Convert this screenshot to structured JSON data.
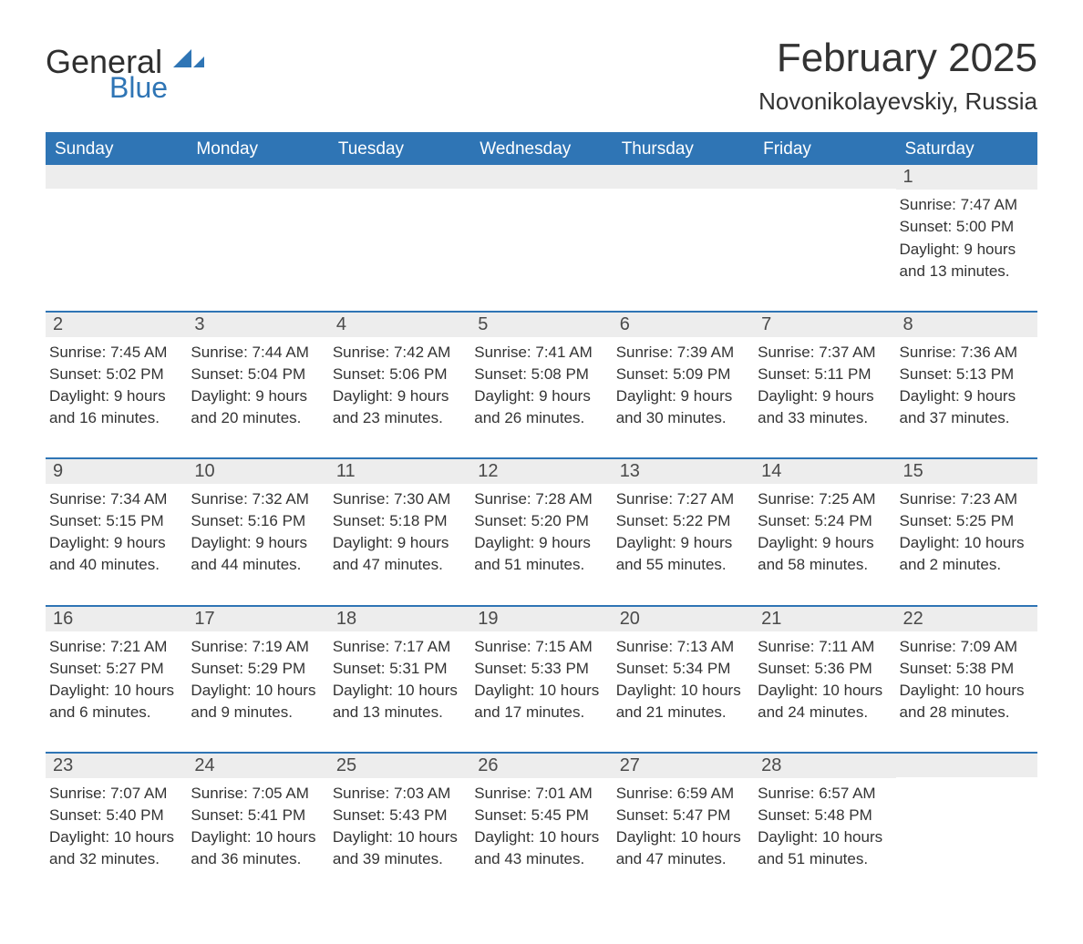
{
  "brand": {
    "text_general": "General",
    "text_blue": "Blue",
    "mark_color": "#2f75b5",
    "text_dark_color": "#2f2f2f"
  },
  "title": {
    "month_year": "February 2025",
    "location": "Novonikolayevskiy, Russia"
  },
  "colors": {
    "header_bg": "#2f75b5",
    "header_text": "#ffffff",
    "row_divider": "#2f75b5",
    "daynum_bg": "#ededed",
    "body_text": "#333333",
    "page_bg": "#ffffff"
  },
  "typography": {
    "month_title_fontsize": 44,
    "location_fontsize": 26,
    "weekday_fontsize": 19,
    "daynum_fontsize": 20,
    "body_fontsize": 17,
    "logo_general_fontsize": 36,
    "logo_blue_fontsize": 32
  },
  "weekdays": [
    "Sunday",
    "Monday",
    "Tuesday",
    "Wednesday",
    "Thursday",
    "Friday",
    "Saturday"
  ],
  "weeks": [
    [
      null,
      null,
      null,
      null,
      null,
      null,
      {
        "day": "1",
        "sunrise": "7:47 AM",
        "sunset": "5:00 PM",
        "daylight1": "Daylight: 9 hours",
        "daylight2": "and 13 minutes."
      }
    ],
    [
      {
        "day": "2",
        "sunrise": "7:45 AM",
        "sunset": "5:02 PM",
        "daylight1": "Daylight: 9 hours",
        "daylight2": "and 16 minutes."
      },
      {
        "day": "3",
        "sunrise": "7:44 AM",
        "sunset": "5:04 PM",
        "daylight1": "Daylight: 9 hours",
        "daylight2": "and 20 minutes."
      },
      {
        "day": "4",
        "sunrise": "7:42 AM",
        "sunset": "5:06 PM",
        "daylight1": "Daylight: 9 hours",
        "daylight2": "and 23 minutes."
      },
      {
        "day": "5",
        "sunrise": "7:41 AM",
        "sunset": "5:08 PM",
        "daylight1": "Daylight: 9 hours",
        "daylight2": "and 26 minutes."
      },
      {
        "day": "6",
        "sunrise": "7:39 AM",
        "sunset": "5:09 PM",
        "daylight1": "Daylight: 9 hours",
        "daylight2": "and 30 minutes."
      },
      {
        "day": "7",
        "sunrise": "7:37 AM",
        "sunset": "5:11 PM",
        "daylight1": "Daylight: 9 hours",
        "daylight2": "and 33 minutes."
      },
      {
        "day": "8",
        "sunrise": "7:36 AM",
        "sunset": "5:13 PM",
        "daylight1": "Daylight: 9 hours",
        "daylight2": "and 37 minutes."
      }
    ],
    [
      {
        "day": "9",
        "sunrise": "7:34 AM",
        "sunset": "5:15 PM",
        "daylight1": "Daylight: 9 hours",
        "daylight2": "and 40 minutes."
      },
      {
        "day": "10",
        "sunrise": "7:32 AM",
        "sunset": "5:16 PM",
        "daylight1": "Daylight: 9 hours",
        "daylight2": "and 44 minutes."
      },
      {
        "day": "11",
        "sunrise": "7:30 AM",
        "sunset": "5:18 PM",
        "daylight1": "Daylight: 9 hours",
        "daylight2": "and 47 minutes."
      },
      {
        "day": "12",
        "sunrise": "7:28 AM",
        "sunset": "5:20 PM",
        "daylight1": "Daylight: 9 hours",
        "daylight2": "and 51 minutes."
      },
      {
        "day": "13",
        "sunrise": "7:27 AM",
        "sunset": "5:22 PM",
        "daylight1": "Daylight: 9 hours",
        "daylight2": "and 55 minutes."
      },
      {
        "day": "14",
        "sunrise": "7:25 AM",
        "sunset": "5:24 PM",
        "daylight1": "Daylight: 9 hours",
        "daylight2": "and 58 minutes."
      },
      {
        "day": "15",
        "sunrise": "7:23 AM",
        "sunset": "5:25 PM",
        "daylight1": "Daylight: 10 hours",
        "daylight2": "and 2 minutes."
      }
    ],
    [
      {
        "day": "16",
        "sunrise": "7:21 AM",
        "sunset": "5:27 PM",
        "daylight1": "Daylight: 10 hours",
        "daylight2": "and 6 minutes."
      },
      {
        "day": "17",
        "sunrise": "7:19 AM",
        "sunset": "5:29 PM",
        "daylight1": "Daylight: 10 hours",
        "daylight2": "and 9 minutes."
      },
      {
        "day": "18",
        "sunrise": "7:17 AM",
        "sunset": "5:31 PM",
        "daylight1": "Daylight: 10 hours",
        "daylight2": "and 13 minutes."
      },
      {
        "day": "19",
        "sunrise": "7:15 AM",
        "sunset": "5:33 PM",
        "daylight1": "Daylight: 10 hours",
        "daylight2": "and 17 minutes."
      },
      {
        "day": "20",
        "sunrise": "7:13 AM",
        "sunset": "5:34 PM",
        "daylight1": "Daylight: 10 hours",
        "daylight2": "and 21 minutes."
      },
      {
        "day": "21",
        "sunrise": "7:11 AM",
        "sunset": "5:36 PM",
        "daylight1": "Daylight: 10 hours",
        "daylight2": "and 24 minutes."
      },
      {
        "day": "22",
        "sunrise": "7:09 AM",
        "sunset": "5:38 PM",
        "daylight1": "Daylight: 10 hours",
        "daylight2": "and 28 minutes."
      }
    ],
    [
      {
        "day": "23",
        "sunrise": "7:07 AM",
        "sunset": "5:40 PM",
        "daylight1": "Daylight: 10 hours",
        "daylight2": "and 32 minutes."
      },
      {
        "day": "24",
        "sunrise": "7:05 AM",
        "sunset": "5:41 PM",
        "daylight1": "Daylight: 10 hours",
        "daylight2": "and 36 minutes."
      },
      {
        "day": "25",
        "sunrise": "7:03 AM",
        "sunset": "5:43 PM",
        "daylight1": "Daylight: 10 hours",
        "daylight2": "and 39 minutes."
      },
      {
        "day": "26",
        "sunrise": "7:01 AM",
        "sunset": "5:45 PM",
        "daylight1": "Daylight: 10 hours",
        "daylight2": "and 43 minutes."
      },
      {
        "day": "27",
        "sunrise": "6:59 AM",
        "sunset": "5:47 PM",
        "daylight1": "Daylight: 10 hours",
        "daylight2": "and 47 minutes."
      },
      {
        "day": "28",
        "sunrise": "6:57 AM",
        "sunset": "5:48 PM",
        "daylight1": "Daylight: 10 hours",
        "daylight2": "and 51 minutes."
      },
      null
    ]
  ],
  "labels": {
    "sunrise_prefix": "Sunrise: ",
    "sunset_prefix": "Sunset: "
  }
}
